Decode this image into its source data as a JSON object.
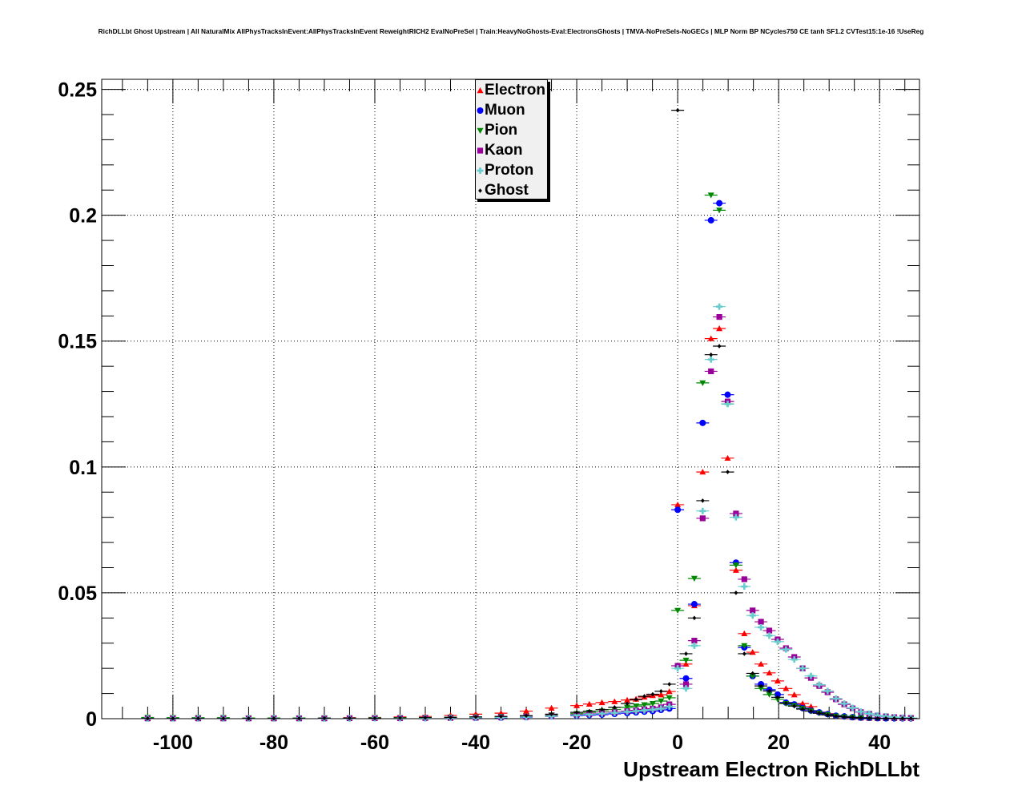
{
  "title": "RichDLLbt Ghost Upstream | All NaturalMix AllPhysTracksInEvent:AllPhysTracksInEvent ReweightRICH2 EvalNoPreSel | Train:HeavyNoGhosts-Eval:ElectronsGhosts | TMVA-NoPreSels-NoGECs | MLP Norm BP NCycles750 CE tanh SF1.2 CVTest15:1e-16 !UseReg",
  "chart_data": {
    "type": "scatter",
    "title": "RichDLLbt Ghost Upstream | All NaturalMix AllPhysTracksInEvent:AllPhysTracksInEvent ReweightRICH2 EvalNoPreSel | Train:HeavyNoGhosts-Eval:ElectronsGhosts | TMVA-NoPreSels-NoGECs | MLP Norm BP NCycles750 CE tanh SF1.2 CVTest15:1e-16 !UseReg",
    "xlabel": "Upstream Electron RichDLLbt",
    "ylabel": "",
    "xlim": [
      -114.1,
      47.9
    ],
    "ylim": [
      0,
      0.254
    ],
    "xticks": [
      -100,
      -80,
      -60,
      -40,
      -20,
      0,
      20,
      40
    ],
    "xtick_labels": [
      "-100",
      "-80",
      "-60",
      "-40",
      "-20",
      "0",
      "20",
      "40"
    ],
    "yticks": [
      0,
      0.05,
      0.1,
      0.15,
      0.2,
      0.25
    ],
    "ytick_labels": [
      "0",
      "0.05",
      "0.1",
      "0.15",
      "0.2",
      "0.25"
    ],
    "grid": true,
    "legend_position": "top-center",
    "x": [
      -105,
      -100,
      -95,
      -90,
      -85,
      -80,
      -75,
      -70,
      -65,
      -60,
      -55,
      -50,
      -45,
      -40,
      -35,
      -30,
      -25,
      -20,
      -17.5,
      -15,
      -12.5,
      -10,
      -8.25,
      -6.6,
      -4.95,
      -3.3,
      -1.65,
      0,
      1.65,
      3.3,
      4.95,
      6.6,
      8.25,
      9.9,
      11.55,
      13.2,
      14.85,
      16.5,
      18.15,
      19.8,
      21.45,
      23.1,
      24.75,
      26.4,
      28.05,
      29.7,
      31.35,
      33,
      34.65,
      36.3,
      37.95,
      39.6,
      41.25,
      42.9,
      44.55,
      46.2
    ],
    "series": [
      {
        "name": "Electron",
        "color": "#ff0000",
        "marker": "triangle-up",
        "values": [
          0.0001,
          0.0001,
          0.0002,
          0.0002,
          0.0002,
          0.0002,
          0.0003,
          0.0003,
          0.0004,
          0.0005,
          0.0007,
          0.0009,
          0.0013,
          0.0018,
          0.0022,
          0.003,
          0.0042,
          0.0052,
          0.0058,
          0.0064,
          0.0068,
          0.0074,
          0.0078,
          0.0086,
          0.0092,
          0.0095,
          0.0108,
          0.085,
          0.0217,
          0.0449,
          0.098,
          0.151,
          0.155,
          0.1035,
          0.059,
          0.0338,
          0.0264,
          0.0217,
          0.0182,
          0.015,
          0.012,
          0.0095,
          0.006,
          0.0048,
          0.0026,
          0.002,
          0.0012,
          0.0008,
          0.0005,
          0.0003,
          0.0002,
          0.0001,
          0.0001,
          0.0001,
          0.0001,
          0.0001
        ]
      },
      {
        "name": "Muon",
        "color": "#0000ff",
        "marker": "circle",
        "values": [
          0.0001,
          0.0001,
          0.0001,
          0.0001,
          0.0001,
          0.0001,
          0.0001,
          0.0001,
          0.0001,
          0.0002,
          0.0002,
          0.0002,
          0.0003,
          0.0003,
          0.0004,
          0.0006,
          0.0009,
          0.0012,
          0.0014,
          0.0016,
          0.0019,
          0.0022,
          0.0025,
          0.0028,
          0.003,
          0.0035,
          0.004,
          0.083,
          0.016,
          0.0455,
          0.1175,
          0.198,
          0.2048,
          0.1287,
          0.062,
          0.0283,
          0.0169,
          0.0137,
          0.0115,
          0.0096,
          0.0064,
          0.0057,
          0.0042,
          0.0032,
          0.0025,
          0.0018,
          0.0012,
          0.0009,
          0.0006,
          0.0004,
          0.0003,
          0.0002,
          0.0001,
          0.0001,
          0.0001,
          0.0001
        ]
      },
      {
        "name": "Pion",
        "color": "#008800",
        "marker": "triangle-down",
        "values": [
          0.0005,
          0.0004,
          0.0004,
          0.0004,
          0.0003,
          0.0003,
          0.0003,
          0.0003,
          0.0003,
          0.0004,
          0.0004,
          0.0005,
          0.0006,
          0.0007,
          0.0009,
          0.001,
          0.0015,
          0.002,
          0.0025,
          0.003,
          0.0036,
          0.0045,
          0.005,
          0.0055,
          0.006,
          0.007,
          0.0083,
          0.043,
          0.0232,
          0.0557,
          0.1334,
          0.208,
          0.202,
          0.125,
          0.061,
          0.029,
          0.0169,
          0.012,
          0.0096,
          0.0077,
          0.006,
          0.0052,
          0.004,
          0.003,
          0.0022,
          0.0016,
          0.001,
          0.0007,
          0.0005,
          0.0003,
          0.0002,
          0.0001,
          0.0001,
          0.0001,
          0.0001,
          0.0001
        ]
      },
      {
        "name": "Kaon",
        "color": "#990099",
        "marker": "square",
        "values": [
          0.0001,
          0.0001,
          0.0001,
          0.0001,
          0.0001,
          0.0001,
          0.0001,
          0.0001,
          0.0002,
          0.0002,
          0.0002,
          0.0003,
          0.0003,
          0.0004,
          0.0006,
          0.0008,
          0.0012,
          0.0016,
          0.0019,
          0.0022,
          0.0026,
          0.003,
          0.0033,
          0.0037,
          0.004,
          0.0045,
          0.0057,
          0.021,
          0.0137,
          0.031,
          0.0796,
          0.138,
          0.1596,
          0.126,
          0.0815,
          0.0554,
          0.043,
          0.0385,
          0.035,
          0.0315,
          0.028,
          0.0245,
          0.02,
          0.0162,
          0.013,
          0.0105,
          0.0077,
          0.0057,
          0.0041,
          0.0026,
          0.0019,
          0.0012,
          0.0009,
          0.0006,
          0.0004,
          0.0003
        ]
      },
      {
        "name": "Proton",
        "color": "#66cccc",
        "marker": "cross",
        "values": [
          0.0001,
          0.0001,
          0.0001,
          0.0001,
          0.0001,
          0.0001,
          0.0001,
          0.0001,
          0.0001,
          0.0002,
          0.0002,
          0.0002,
          0.0003,
          0.0004,
          0.0005,
          0.0007,
          0.001,
          0.0014,
          0.0017,
          0.002,
          0.0023,
          0.0027,
          0.003,
          0.0033,
          0.0036,
          0.004,
          0.0048,
          0.02,
          0.012,
          0.029,
          0.0825,
          0.1427,
          0.1637,
          0.125,
          0.08,
          0.0525,
          0.041,
          0.0363,
          0.033,
          0.0306,
          0.0275,
          0.0235,
          0.02,
          0.017,
          0.0135,
          0.011,
          0.008,
          0.006,
          0.0043,
          0.0028,
          0.002,
          0.0013,
          0.0009,
          0.0006,
          0.0004,
          0.0003
        ]
      },
      {
        "name": "Ghost",
        "color": "#000000",
        "marker": "diamond",
        "values": [
          0.0001,
          0.0001,
          0.0001,
          0.0001,
          0.0001,
          0.0001,
          0.0001,
          0.0002,
          0.0002,
          0.0002,
          0.0003,
          0.0004,
          0.0005,
          0.0007,
          0.0009,
          0.0012,
          0.0018,
          0.0025,
          0.003,
          0.0036,
          0.0045,
          0.006,
          0.0076,
          0.0089,
          0.0097,
          0.0109,
          0.0137,
          0.2417,
          0.0258,
          0.04,
          0.0866,
          0.1446,
          0.148,
          0.098,
          0.05,
          0.0258,
          0.018,
          0.013,
          0.011,
          0.0085,
          0.0062,
          0.005,
          0.0038,
          0.003,
          0.0022,
          0.0015,
          0.001,
          0.0007,
          0.0005,
          0.0003,
          0.0002,
          0.0001,
          0.0001,
          0.0001,
          0.0001,
          0.0001
        ]
      }
    ]
  }
}
